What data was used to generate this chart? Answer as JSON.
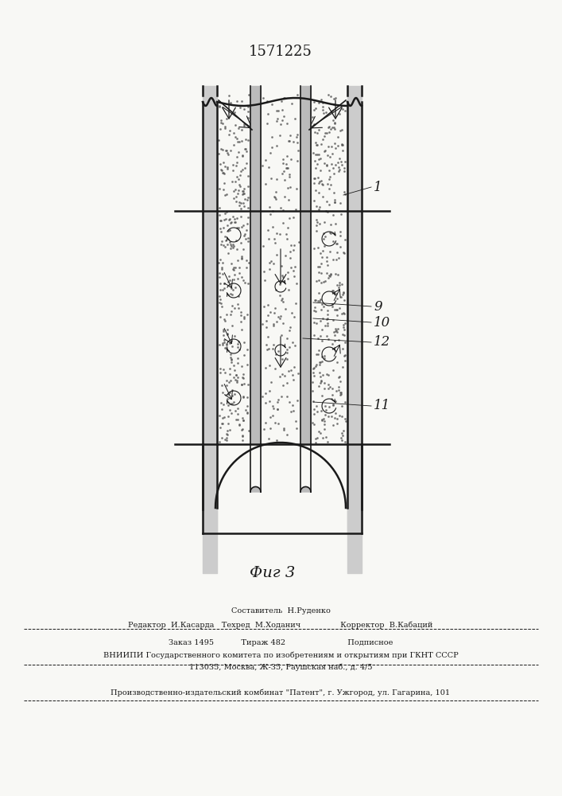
{
  "title_number": "1571225",
  "fig_label": "Фиг 3",
  "bg_color": "#f8f8f5",
  "line_color": "#1a1a1a",
  "footer_lines": [
    "Составитель  Н.Руденко",
    "Редактор  И.Касарда   Техред  М.Ходанич                Корректор  В.Кабаций",
    "Заказ 1495           Тираж 482                         Подписное",
    "ВНИИПИ Государственного комитета по изобретениям и открытиям при ГКНТ СССР",
    "113035, Москва, Ж-35, Раушская наб., д. 4/5",
    "Производственно-издательский комбинат \"Патент\", г. Ужгород, ул. Гагарина, 101"
  ]
}
